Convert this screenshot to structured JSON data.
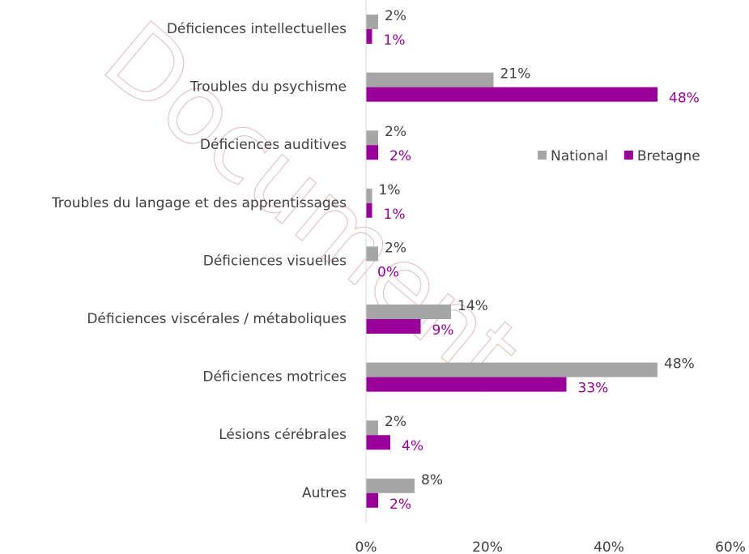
{
  "chart_data": {
    "type": "hbar",
    "watermark": "Document",
    "categories": [
      "Déficiences intellectuelles",
      "Troubles du psychisme",
      "Déficiences auditives",
      "Troubles du langage et des apprentissages",
      "Déficiences visuelles",
      "Déficiences viscérales / métaboliques",
      "Déficiences motrices",
      "Lésions cérébrales",
      "Autres"
    ],
    "series": [
      {
        "name": "National",
        "color": "#a6a6a6",
        "label_color": "#404040",
        "values": [
          2,
          21,
          2,
          1,
          2,
          14,
          48,
          2,
          8
        ],
        "value_labels": [
          "2%",
          "21%",
          "2%",
          "1%",
          "2%",
          "14%",
          "48%",
          "2%",
          "8%"
        ]
      },
      {
        "name": "Bretagne",
        "color": "#990099",
        "label_color": "#990099",
        "values": [
          1,
          48,
          2,
          1,
          0,
          9,
          33,
          4,
          2
        ],
        "value_labels": [
          "1%",
          "48%",
          "2%",
          "1%",
          "0%",
          "9%",
          "33%",
          "4%",
          "2%"
        ]
      }
    ],
    "xlim": [
      0,
      60
    ],
    "xticks": [
      {
        "value": 0,
        "label": "0%"
      },
      {
        "value": 20,
        "label": "20%"
      },
      {
        "value": 40,
        "label": "40%"
      },
      {
        "value": 60,
        "label": "60%"
      }
    ],
    "grid": false,
    "legend": "right"
  }
}
